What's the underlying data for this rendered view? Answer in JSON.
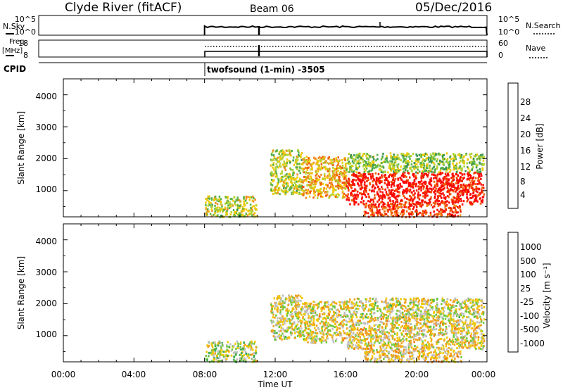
{
  "header": {
    "station": "Clyde River (fitACF)",
    "beam": "Beam 06",
    "date": "05/Dec/2016"
  },
  "left_labels": {
    "nsky": "N.Sky",
    "freq": "Freq.",
    "mhz": "[MHz]",
    "cpid": "CPID"
  },
  "right_labels": {
    "nsearch": "N.Search",
    "nave": "Nave"
  },
  "noise_panel": {
    "left_ticks": [
      "10^5",
      "10^0"
    ],
    "right_ticks": [
      "10^5",
      "10^0"
    ]
  },
  "freq_panel": {
    "left_ticks": [
      "18",
      "8"
    ],
    "right_ticks": [
      "60",
      "0"
    ]
  },
  "cpid_text": "twofsound (1-min) -3505",
  "xaxis": {
    "label": "Time UT",
    "ticks": [
      "00:00",
      "04:00",
      "08:00",
      "12:00",
      "16:00",
      "20:00",
      "00:00"
    ]
  },
  "power_panel": {
    "ylabel": "Slant Range [km]",
    "yticks": [
      "4000",
      "3000",
      "2000",
      "1000"
    ],
    "colorbar_label": "Power [dB]",
    "colorbar_ticks": [
      "28",
      "24",
      "20",
      "16",
      "12",
      "8",
      "4"
    ],
    "colors": [
      "#0000ff",
      "#1e3cb4",
      "#3c9650",
      "#5ab446",
      "#b4d232",
      "#f0c800",
      "#f08c1e",
      "#f05a00",
      "#f01e00",
      "#ff0000"
    ]
  },
  "velocity_panel": {
    "ylabel": "Slant Range [km]",
    "yticks": [
      "4000",
      "3000",
      "2000",
      "1000"
    ],
    "colorbar_label": "Velocity [m s⁻¹]",
    "colorbar_ticks": [
      "1000",
      "500",
      "100",
      "25",
      "-25",
      "-100",
      "-500",
      "-1000"
    ],
    "colors": [
      "#2846b4",
      "#286e96",
      "#2a8c6e",
      "#3caa50",
      "#6ec83c",
      "#bebebe",
      "#f0c800",
      "#f0a01e",
      "#f07814",
      "#f04614",
      "#ff0000"
    ]
  },
  "chart_data": {
    "type": "heatmap",
    "x_range_hours": [
      0,
      24
    ],
    "y_range_km": [
      180,
      4500
    ],
    "observation_start_hour": 8,
    "power_db_range": [
      0,
      30
    ],
    "velocity_range": [
      -1000,
      1000
    ],
    "scatter_regions": [
      {
        "time_range_hours": [
          8.0,
          10.9
        ],
        "range_km": [
          200,
          850
        ],
        "power_db": 14,
        "velocity": 40
      },
      {
        "time_range_hours": [
          11.7,
          13.5
        ],
        "range_km": [
          900,
          2300
        ],
        "power_db": 14,
        "velocity": -80
      },
      {
        "time_range_hours": [
          13.5,
          16.0
        ],
        "range_km": [
          800,
          2100
        ],
        "power_db": 18,
        "velocity": -120
      },
      {
        "time_range_hours": [
          16.0,
          23.8
        ],
        "range_km": [
          600,
          1600
        ],
        "power_db": 27,
        "velocity": -150
      },
      {
        "time_range_hours": [
          16.0,
          23.8
        ],
        "range_km": [
          1600,
          2200
        ],
        "power_db": 12,
        "velocity": -60
      },
      {
        "time_range_hours": [
          17.0,
          22.5
        ],
        "range_km": [
          200,
          600
        ],
        "power_db": 24,
        "velocity": -200
      }
    ]
  }
}
